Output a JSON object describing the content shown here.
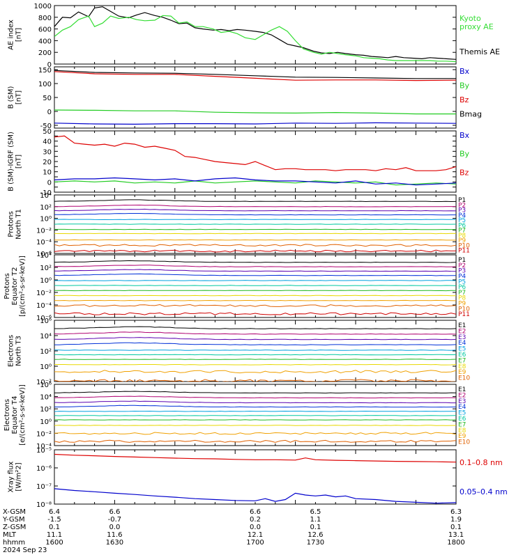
{
  "colors": {
    "black": "#000000",
    "red": "#dd0000",
    "green": "#22cc22",
    "blue": "#0000cc",
    "kyoto": "#33dd33",
    "frame": "#000000"
  },
  "spectral_colors": [
    "#000000",
    "#b00070",
    "#5a00b0",
    "#0030d8",
    "#00a0e0",
    "#00c8a0",
    "#20b820",
    "#e8d800",
    "#f0a000",
    "#e06000",
    "#d00000"
  ],
  "footer": {
    "rows": [
      {
        "label": "X-GSM",
        "values": [
          "6.4",
          "6.6",
          "6.6",
          "6.5",
          "6.3"
        ]
      },
      {
        "label": "Y-GSM",
        "values": [
          "-1.5",
          "-0.7",
          "0.2",
          "1.1",
          "1.9"
        ]
      },
      {
        "label": "Z-GSM",
        "values": [
          "0.1",
          "0.0",
          "0.0",
          "0.1",
          "0.1"
        ]
      },
      {
        "label": "MLT",
        "values": [
          "11.1",
          "11.6",
          "12.1",
          "12.6",
          "13.1"
        ]
      },
      {
        "label": "hhmm",
        "values": [
          "1600",
          "1630",
          "1700",
          "1730",
          "1800"
        ]
      }
    ],
    "date": "2024 Sep 23"
  },
  "chart_data": [
    {
      "type": "line",
      "id": "ae",
      "ylabel": [
        "AE index",
        "[nT]"
      ],
      "ylim": [
        0,
        1000
      ],
      "yticks": [
        0,
        200,
        400,
        600,
        800,
        1000
      ],
      "ytick_labels": [
        "0",
        "200",
        "400",
        "600",
        "800",
        "1000"
      ],
      "xlim": [
        1600,
        1800
      ],
      "labels": [
        {
          "text": "Kyoto",
          "color": "#33dd33"
        },
        {
          "text": "proxy AE",
          "color": "#33dd33"
        },
        {
          "text": "Themis AE",
          "color": "#000000"
        }
      ],
      "series": [
        {
          "name": "Themis AE",
          "color": "#000000",
          "x": [
            1600,
            1604,
            1608,
            1612,
            1617,
            1620,
            1624,
            1628,
            1632,
            1637,
            1641,
            1645,
            1650,
            1654,
            1658,
            1662,
            1666,
            1670,
            1674,
            1679,
            1683,
            1687,
            1691,
            1695,
            1700,
            1704,
            1708,
            1712,
            1716,
            1720,
            1724,
            1729,
            1733,
            1737,
            1741,
            1745,
            1750,
            1754,
            1758,
            1762,
            1766,
            1770,
            1774,
            1779,
            1783,
            1787,
            1791,
            1795,
            1800
          ],
          "y": [
            640,
            800,
            790,
            890,
            810,
            960,
            980,
            900,
            820,
            790,
            840,
            880,
            830,
            800,
            750,
            690,
            700,
            620,
            600,
            580,
            590,
            570,
            590,
            580,
            560,
            540,
            500,
            420,
            340,
            310,
            280,
            220,
            190,
            180,
            200,
            180,
            160,
            150,
            130,
            120,
            110,
            130,
            110,
            100,
            90,
            110,
            100,
            90,
            80
          ]
        },
        {
          "name": "Kyoto proxy AE",
          "color": "#33dd33",
          "x": [
            1600,
            1604,
            1608,
            1612,
            1617,
            1620,
            1624,
            1628,
            1632,
            1637,
            1641,
            1645,
            1650,
            1654,
            1658,
            1662,
            1666,
            1670,
            1674,
            1679,
            1683,
            1687,
            1691,
            1695,
            1700,
            1704,
            1708,
            1712,
            1716,
            1720,
            1724,
            1729,
            1733,
            1737,
            1741,
            1745,
            1750,
            1754,
            1758,
            1762,
            1766,
            1770,
            1774,
            1779,
            1783,
            1787,
            1791,
            1795,
            1800
          ],
          "y": [
            470,
            580,
            640,
            760,
            820,
            640,
            700,
            820,
            780,
            800,
            760,
            740,
            750,
            830,
            820,
            700,
            720,
            640,
            640,
            600,
            540,
            560,
            520,
            450,
            420,
            500,
            580,
            640,
            560,
            400,
            260,
            200,
            170,
            200,
            180,
            160,
            140,
            110,
            100,
            90,
            70,
            60,
            60,
            60,
            60,
            60,
            50,
            50,
            40
          ]
        }
      ]
    },
    {
      "type": "line",
      "id": "b_sm",
      "ylabel": [
        "B (SM)",
        "[nT]"
      ],
      "ylim": [
        -60,
        160
      ],
      "yticks": [
        -50,
        0,
        50,
        100,
        150
      ],
      "ytick_labels": [
        "-50",
        "0",
        "50",
        "100",
        "150"
      ],
      "xlim": [
        1600,
        1800
      ],
      "labels": [
        {
          "text": "Bx",
          "color": "#0000cc"
        },
        {
          "text": "By",
          "color": "#22cc22"
        },
        {
          "text": "Bz",
          "color": "#dd0000"
        },
        {
          "text": "Bmag",
          "color": "#000000"
        }
      ],
      "series": [
        {
          "name": "Bmag",
          "color": "#000000",
          "x": [
            1600,
            1620,
            1640,
            1660,
            1680,
            1700,
            1720,
            1740,
            1760,
            1780,
            1800
          ],
          "y": [
            147,
            140,
            138,
            137,
            133,
            128,
            123,
            122,
            120,
            118,
            118
          ]
        },
        {
          "name": "Bz",
          "color": "#dd0000",
          "x": [
            1600,
            1620,
            1640,
            1660,
            1680,
            1700,
            1720,
            1740,
            1760,
            1780,
            1800
          ],
          "y": [
            143,
            135,
            133,
            133,
            126,
            119,
            112,
            113,
            113,
            111,
            112
          ]
        },
        {
          "name": "By",
          "color": "#22cc22",
          "x": [
            1600,
            1620,
            1640,
            1660,
            1680,
            1700,
            1720,
            1740,
            1760,
            1780,
            1800
          ],
          "y": [
            5,
            4,
            2,
            2,
            -3,
            -5,
            -6,
            -4,
            -6,
            -9,
            -9
          ]
        },
        {
          "name": "Bx",
          "color": "#0000cc",
          "x": [
            1600,
            1620,
            1640,
            1660,
            1680,
            1700,
            1720,
            1740,
            1760,
            1780,
            1800
          ],
          "y": [
            -42,
            -45,
            -46,
            -44,
            -44,
            -45,
            -42,
            -43,
            -41,
            -42,
            -43
          ]
        }
      ]
    },
    {
      "type": "line",
      "id": "b_igrf",
      "ylabel": [
        "B (SM)-IGRF (SM)",
        "[nT]"
      ],
      "ylim": [
        -10,
        50
      ],
      "yticks": [
        -10,
        -5,
        0,
        5,
        10,
        15,
        20,
        25,
        30,
        35,
        40,
        45,
        50
      ],
      "ytick_labels": [
        "-10",
        "",
        "0",
        "",
        "10",
        "",
        "20",
        "",
        "30",
        "",
        "40",
        "",
        "50"
      ],
      "xlim": [
        1600,
        1800
      ],
      "labels": [
        {
          "text": "Bx",
          "color": "#0000cc"
        },
        {
          "text": "By",
          "color": "#22cc22"
        },
        {
          "text": "Bz",
          "color": "#dd0000"
        }
      ],
      "series": [
        {
          "name": "Bz",
          "color": "#dd0000",
          "x": [
            1600,
            1605,
            1610,
            1615,
            1620,
            1625,
            1630,
            1635,
            1640,
            1645,
            1650,
            1655,
            1660,
            1665,
            1670,
            1675,
            1680,
            1685,
            1690,
            1695,
            1700,
            1705,
            1710,
            1715,
            1720,
            1725,
            1730,
            1735,
            1740,
            1745,
            1750,
            1755,
            1760,
            1765,
            1770,
            1775,
            1780,
            1785,
            1790,
            1795,
            1800
          ],
          "y": [
            44,
            45,
            38,
            37,
            36,
            37,
            35,
            38,
            37,
            34,
            35,
            33,
            31,
            25,
            24,
            22,
            20,
            19,
            18,
            17,
            20,
            16,
            12,
            13,
            13,
            12,
            12,
            12,
            11,
            12,
            12,
            12,
            11,
            13,
            12,
            14,
            11,
            11,
            11,
            12,
            15
          ]
        },
        {
          "name": "By",
          "color": "#22cc22",
          "x": [
            1600,
            1610,
            1620,
            1630,
            1640,
            1650,
            1660,
            1670,
            1680,
            1690,
            1700,
            1710,
            1720,
            1730,
            1740,
            1750,
            1760,
            1770,
            1780,
            1790,
            1800
          ],
          "y": [
            0,
            1,
            0,
            1,
            -1,
            0,
            -1,
            1,
            -1,
            0,
            1,
            0,
            -1,
            1,
            0,
            -1,
            0,
            -3,
            -2,
            -1,
            -2
          ]
        },
        {
          "name": "Bx",
          "color": "#0000cc",
          "x": [
            1600,
            1610,
            1620,
            1630,
            1640,
            1650,
            1660,
            1670,
            1680,
            1690,
            1700,
            1710,
            1720,
            1730,
            1740,
            1750,
            1760,
            1770,
            1780,
            1790,
            1800
          ],
          "y": [
            2,
            3,
            3,
            4,
            3,
            2,
            3,
            1,
            3,
            4,
            2,
            1,
            1,
            0,
            -1,
            1,
            -2,
            -1,
            -3,
            -2,
            -1
          ]
        }
      ]
    },
    {
      "type": "line",
      "id": "protons_north",
      "yscale": "log",
      "ylabel": [
        "Protons",
        "North T1"
      ],
      "ylim": [
        -6,
        4
      ],
      "yticks": [
        4,
        2,
        0,
        -2,
        -4,
        -6
      ],
      "ytick_labels": [
        "10⁴",
        "10²",
        "10⁰",
        "10⁻²",
        "10⁻⁴",
        "10⁻⁶"
      ],
      "xlim": [
        1600,
        1800
      ],
      "channel_labels": [
        "P1",
        "P2",
        "P3",
        "P4",
        "P5",
        "P6",
        "P7",
        "P8",
        "P9",
        "P10",
        "P11"
      ],
      "levels_log10": [
        2.9,
        2.0,
        1.3,
        0.6,
        -0.2,
        -1.0,
        -1.9,
        -2.6,
        -3.7,
        -4.6,
        -5.6
      ]
    },
    {
      "type": "line",
      "id": "protons_equator",
      "yscale": "log",
      "ylabel": [
        "Protons",
        "Equator T2",
        "[p/(cm²-s-sr-keV)]"
      ],
      "ylim": [
        -6,
        4
      ],
      "yticks": [
        4,
        2,
        0,
        -2,
        -4,
        -6
      ],
      "ytick_labels": [
        "10⁴",
        "10²",
        "10⁰",
        "10⁻²",
        "10⁻⁴",
        "10⁻⁶"
      ],
      "xlim": [
        1600,
        1800
      ],
      "channel_labels": [
        "P1",
        "P2",
        "P3",
        "P4",
        "P5",
        "P6",
        "P7",
        "P8",
        "P9",
        "P10",
        "P11"
      ],
      "levels_log10": [
        2.8,
        2.1,
        1.4,
        0.7,
        -0.1,
        -0.9,
        -1.7,
        -2.5,
        -3.3,
        -4.1,
        -5.4
      ]
    },
    {
      "type": "line",
      "id": "electrons_north",
      "yscale": "log",
      "ylabel": [
        "Electrons",
        "North T3"
      ],
      "ylim": [
        -2,
        6
      ],
      "yticks": [
        6,
        4,
        2,
        0,
        -2
      ],
      "ytick_labels": [
        "10⁶",
        "10⁴",
        "10²",
        "10⁰",
        "10⁻²"
      ],
      "xlim": [
        1600,
        1800
      ],
      "channel_labels": [
        "E1",
        "E2",
        "E3",
        "E4",
        "E5",
        "E6",
        "E7",
        "E8",
        "E9",
        "E10"
      ],
      "levels_log10": [
        4.9,
        4.2,
        3.5,
        2.8,
        2.1,
        1.5,
        0.9,
        0.2,
        -0.7,
        -1.9
      ]
    },
    {
      "type": "line",
      "id": "electrons_equator",
      "yscale": "log",
      "ylabel": [
        "Electrons",
        "Equator T4",
        "[e/(cm²-s-sr-keV)]"
      ],
      "ylim": [
        -4,
        6
      ],
      "yticks": [
        6,
        4,
        2,
        0,
        -2,
        -4
      ],
      "ytick_labels": [
        "10⁶",
        "10⁴",
        "10²",
        "10⁰",
        "10⁻²",
        "10⁻⁴"
      ],
      "xlim": [
        1600,
        1800
      ],
      "channel_labels": [
        "E1",
        "E2",
        "E3",
        "E4",
        "E5",
        "E6",
        "E7",
        "E8",
        "E9",
        "E10"
      ],
      "levels_log10": [
        4.6,
        3.8,
        3.0,
        2.3,
        1.6,
        0.9,
        0.2,
        -0.7,
        -2.0,
        -3.3
      ]
    },
    {
      "type": "line",
      "id": "xray",
      "yscale": "log",
      "ylabel": [
        "Xray flux",
        "[W/m²2]"
      ],
      "ylim": [
        -8,
        -5
      ],
      "yticks": [
        -5,
        -6,
        -7,
        -8
      ],
      "ytick_labels": [
        "10⁻⁵",
        "10⁻⁶",
        "10⁻⁷",
        "10⁻⁸"
      ],
      "xlim": [
        1600,
        1800
      ],
      "labels": [
        {
          "text": "0.1–0.8 nm",
          "color": "#dd0000"
        },
        {
          "text": "0.05–0.4 nm",
          "color": "#0000cc"
        }
      ],
      "series": [
        {
          "name": "0.1–0.8 nm",
          "color": "#dd0000",
          "x": [
            1600,
            1610,
            1620,
            1630,
            1640,
            1650,
            1660,
            1670,
            1680,
            1690,
            1700,
            1710,
            1720,
            1725,
            1730,
            1740,
            1750,
            1760,
            1770,
            1780,
            1790,
            1800
          ],
          "y": [
            -5.25,
            -5.3,
            -5.33,
            -5.37,
            -5.4,
            -5.43,
            -5.46,
            -5.49,
            -5.5,
            -5.53,
            -5.55,
            -5.55,
            -5.57,
            -5.45,
            -5.55,
            -5.58,
            -5.6,
            -5.62,
            -5.64,
            -5.65,
            -5.66,
            -5.68
          ]
        },
        {
          "name": "0.05–0.4 nm",
          "color": "#0000cc",
          "x": [
            1600,
            1610,
            1620,
            1630,
            1640,
            1650,
            1660,
            1670,
            1680,
            1690,
            1700,
            1705,
            1710,
            1715,
            1720,
            1725,
            1730,
            1735,
            1740,
            1745,
            1750,
            1760,
            1770,
            1780,
            1790,
            1800
          ],
          "y": [
            -7.15,
            -7.25,
            -7.32,
            -7.4,
            -7.47,
            -7.55,
            -7.62,
            -7.7,
            -7.75,
            -7.8,
            -7.82,
            -7.7,
            -7.85,
            -7.75,
            -7.4,
            -7.5,
            -7.55,
            -7.5,
            -7.6,
            -7.55,
            -7.7,
            -7.75,
            -7.85,
            -7.9,
            -7.95,
            -7.92
          ]
        }
      ]
    }
  ]
}
